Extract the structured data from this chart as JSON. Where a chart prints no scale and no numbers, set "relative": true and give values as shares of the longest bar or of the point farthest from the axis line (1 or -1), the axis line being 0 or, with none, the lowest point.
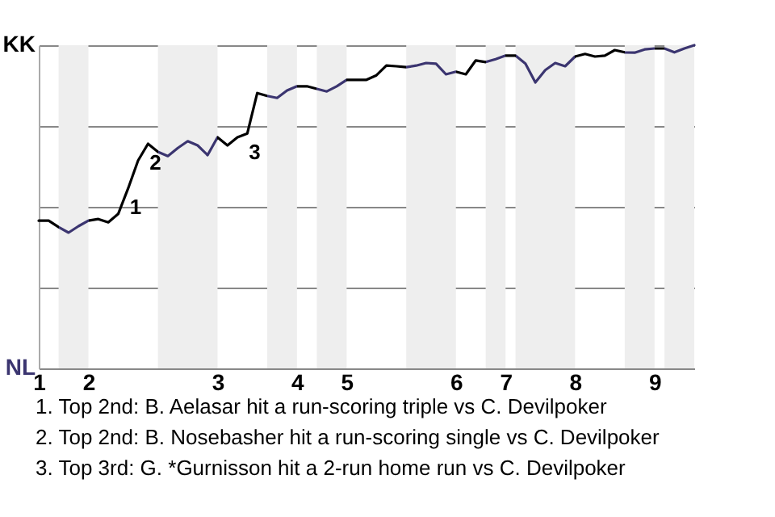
{
  "chart_data": {
    "type": "line",
    "relative": true,
    "categories": [
      "1",
      null,
      null,
      null,
      null,
      "2",
      null,
      null,
      null,
      null,
      null,
      null,
      null,
      null,
      null,
      null,
      null,
      null,
      "3",
      null,
      null,
      null,
      null,
      null,
      null,
      null,
      "4",
      null,
      null,
      null,
      null,
      "5",
      null,
      null,
      null,
      null,
      null,
      null,
      null,
      null,
      null,
      null,
      "6",
      null,
      null,
      null,
      null,
      "7",
      null,
      null,
      null,
      null,
      null,
      null,
      "8",
      null,
      null,
      null,
      null,
      null,
      null,
      null,
      "9",
      null,
      null,
      null,
      null
    ],
    "series": [
      {
        "color": "#000000",
        "values": [
          0.457,
          0.457,
          0.437,
          0.42,
          0.44,
          0.457,
          0.462,
          0.452,
          0.478,
          0.557,
          0.643,
          0.695,
          0.67,
          0.657,
          0.682,
          0.703,
          0.69,
          0.66,
          0.715,
          0.69,
          0.715,
          0.727,
          0.852,
          0.843,
          0.837,
          0.86,
          0.873,
          0.873,
          0.865,
          0.857,
          0.873,
          0.893,
          0.893,
          0.893,
          0.907,
          0.937,
          0.935,
          0.932,
          0.937,
          0.945,
          0.943,
          0.91,
          0.918,
          0.91,
          0.953,
          0.948,
          0.957,
          0.968,
          0.968,
          0.943,
          0.885,
          0.923,
          0.945,
          0.935,
          0.965,
          0.973,
          0.965,
          0.968,
          0.985,
          0.978,
          0.977,
          0.987,
          0.99,
          0.99,
          0.978,
          0.99,
          1
        ],
        "colors": [
          "#000000",
          "#000000",
          "#3b3570",
          "#3b3570",
          "#3b3570",
          "#000000",
          "#000000",
          "#000000",
          "#000000",
          "#000000",
          "#000000",
          "#000000",
          "#3b3570",
          "#3b3570",
          "#3b3570",
          "#3b3570",
          "#3b3570",
          "#3b3570",
          "#000000",
          "#000000",
          "#000000",
          "#000000",
          "#000000",
          "#3b3570",
          "#3b3570",
          "#3b3570",
          "#000000",
          "#000000",
          "#3b3570",
          "#3b3570",
          "#3b3570",
          "#000000",
          "#000000",
          "#000000",
          "#000000",
          "#000000",
          "#000000",
          "#3b3570",
          "#3b3570",
          "#3b3570",
          "#3b3570",
          "#3b3570",
          "#000000",
          "#000000",
          "#000000",
          "#3b3570",
          "#3b3570",
          "#000000",
          "#3b3570",
          "#3b3570",
          "#3b3570",
          "#3b3570",
          "#3b3570",
          "#3b3570",
          "#000000",
          "#000000",
          "#000000",
          "#000000",
          "#000000",
          "#3b3570",
          "#3b3570",
          "#3b3570",
          "#000000",
          "#3b3570",
          "#3b3570",
          "#3b3570",
          "#3b3570"
        ]
      }
    ],
    "grid": "y",
    "line_style": "solid",
    "annotations": [
      "KK",
      "NL",
      {
        "text": "1",
        "y": 0.557
      },
      {
        "text": "2",
        "y": 0.695
      },
      {
        "text": "3",
        "y": 0.727
      },
      "1. Top 2nd: B. Aelasar hit a run-scoring triple vs C. Devilpoker",
      "2. Top 2nd: B. Nosebasher hit a run-scoring single vs C. Devilpoker",
      "3. Top 3rd: G. *Gurnisson hit a 2-run home run vs C. Devilpoker"
    ]
  }
}
